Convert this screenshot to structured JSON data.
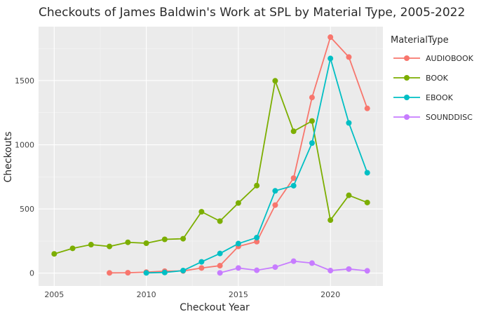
{
  "chart_data": {
    "type": "line",
    "title": "Checkouts of James Baldwin's Work at SPL by Material Type, 2005-2022",
    "xlabel": "Checkout Year",
    "ylabel": "Checkouts",
    "xlim": [
      2004.15,
      2022.85
    ],
    "ylim": [
      -100,
      1920
    ],
    "xticks": [
      2005,
      2010,
      2015,
      2020
    ],
    "yticks": [
      0,
      500,
      1000,
      1500
    ],
    "grid": true,
    "legend_title": "MaterialType",
    "legend_position": "right",
    "series": [
      {
        "name": "AUDIOBOOK",
        "color": "#F8766D",
        "x": [
          2008,
          2009,
          2010,
          2011,
          2012,
          2013,
          2014,
          2015,
          2016,
          2017,
          2018,
          2019,
          2020,
          2021,
          2022
        ],
        "values": [
          2,
          3,
          8,
          15,
          17,
          40,
          58,
          208,
          245,
          530,
          740,
          1368,
          1838,
          1683,
          1283
        ]
      },
      {
        "name": "BOOK",
        "color": "#7CAE00",
        "x": [
          2005,
          2006,
          2007,
          2008,
          2009,
          2010,
          2011,
          2012,
          2013,
          2014,
          2015,
          2016,
          2017,
          2018,
          2019,
          2020,
          2021,
          2022
        ],
        "values": [
          150,
          193,
          222,
          208,
          240,
          233,
          263,
          268,
          478,
          405,
          546,
          682,
          1498,
          1105,
          1185,
          413,
          606,
          550
        ]
      },
      {
        "name": "EBOOK",
        "color": "#00BFC4",
        "x": [
          2010,
          2011,
          2012,
          2013,
          2014,
          2015,
          2016,
          2017,
          2018,
          2019,
          2020,
          2021,
          2022
        ],
        "values": [
          2,
          5,
          20,
          88,
          153,
          230,
          277,
          641,
          681,
          1013,
          1672,
          1170,
          782
        ]
      },
      {
        "name": "SOUNDDISC",
        "color": "#C77CFF",
        "x": [
          2014,
          2015,
          2016,
          2017,
          2018,
          2019,
          2020,
          2021,
          2022
        ],
        "values": [
          2,
          40,
          22,
          47,
          93,
          78,
          20,
          32,
          18
        ]
      }
    ]
  }
}
